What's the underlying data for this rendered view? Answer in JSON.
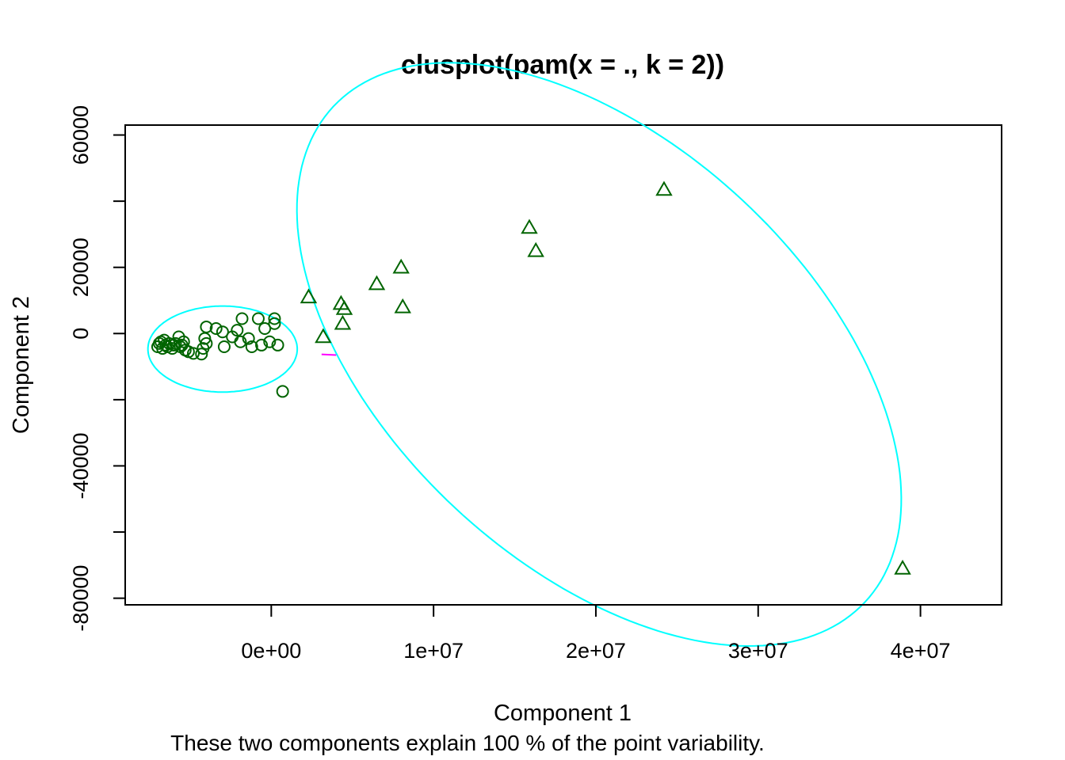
{
  "chart_data": {
    "type": "scatter",
    "title": "clusplot(pam(x = ., k = 2))",
    "xlabel": "Component 1",
    "ylabel": "Component 2",
    "subtitle": "These two components explain 100 % of the point variability.",
    "xlim": [
      -9000000,
      45000000
    ],
    "ylim": [
      -82000,
      63000
    ],
    "x_ticks": [
      0,
      10000000,
      20000000,
      30000000,
      40000000
    ],
    "x_tick_labels": [
      "0e+00",
      "1e+07",
      "2e+07",
      "3e+07",
      "4e+07"
    ],
    "y_ticks": [
      -80000,
      -40000,
      0,
      20000,
      60000
    ],
    "y_tick_labels": [
      "-80000",
      "-40000",
      "0",
      "20000",
      "60000"
    ],
    "y_tick_marks": [
      -80000,
      -60000,
      -40000,
      -20000,
      0,
      20000,
      40000,
      60000
    ],
    "grid": false,
    "colors": {
      "points": "#006400",
      "ellipse": "#00ffff",
      "link": "#ff00ff"
    },
    "series": [
      {
        "marker": "circle",
        "points": [
          [
            -7000000,
            -4000
          ],
          [
            -6900000,
            -3000
          ],
          [
            -6800000,
            -2500
          ],
          [
            -6700000,
            -4500
          ],
          [
            -6600000,
            -2000
          ],
          [
            -6500000,
            -3500
          ],
          [
            -6400000,
            -4000
          ],
          [
            -6300000,
            -3000
          ],
          [
            -6100000,
            -4500
          ],
          [
            -6000000,
            -3500
          ],
          [
            -5900000,
            -3000
          ],
          [
            -5700000,
            -1000
          ],
          [
            -5600000,
            -4000
          ],
          [
            -5500000,
            -3500
          ],
          [
            -5400000,
            -2500
          ],
          [
            -5300000,
            -5000
          ],
          [
            -5100000,
            -5500
          ],
          [
            -4800000,
            -6000
          ],
          [
            -4300000,
            -6200
          ],
          [
            -4200000,
            -4500
          ],
          [
            -4100000,
            -1500
          ],
          [
            -4000000,
            2000
          ],
          [
            -4000000,
            -3000
          ],
          [
            -3400000,
            1500
          ],
          [
            -3000000,
            500
          ],
          [
            -2900000,
            -4000
          ],
          [
            -2400000,
            -1000
          ],
          [
            -2100000,
            1000
          ],
          [
            -1900000,
            -2500
          ],
          [
            -1800000,
            4500
          ],
          [
            -1400000,
            -1500
          ],
          [
            -1200000,
            -4000
          ],
          [
            -800000,
            4500
          ],
          [
            -600000,
            -3500
          ],
          [
            -400000,
            1500
          ],
          [
            -100000,
            -2500
          ],
          [
            200000,
            3000
          ],
          [
            200000,
            4500
          ],
          [
            400000,
            -3500
          ],
          [
            700000,
            -17500
          ]
        ]
      },
      {
        "marker": "triangle",
        "points": [
          [
            2300000,
            11000
          ],
          [
            3200000,
            -1000
          ],
          [
            4300000,
            9000
          ],
          [
            4500000,
            7500
          ],
          [
            4400000,
            3000
          ],
          [
            6500000,
            15000
          ],
          [
            8000000,
            20000
          ],
          [
            8100000,
            8000
          ],
          [
            15900000,
            32000
          ],
          [
            16300000,
            25000
          ],
          [
            24200000,
            43500
          ],
          [
            38900000,
            -71000
          ]
        ]
      }
    ],
    "ellipses": [
      {
        "center": [
          -3000000,
          -4700
        ],
        "semi_x": 4600000,
        "semi_y": 13000,
        "angle_deg": 0
      },
      {
        "center": [
          20200000,
          -6300
        ],
        "semi_x": 22400000,
        "semi_y": 63600,
        "angle_deg": -43
      }
    ],
    "link": {
      "from": [
        3100000,
        -6300
      ],
      "to": [
        4000000,
        -6500
      ]
    }
  }
}
